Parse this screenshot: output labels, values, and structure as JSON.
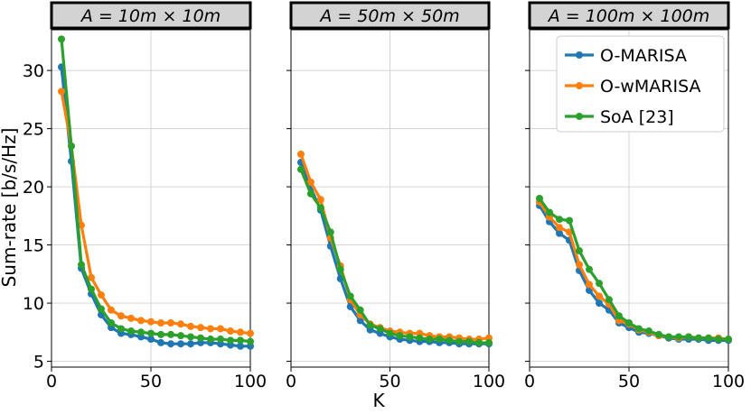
{
  "chart_data": {
    "type": "line",
    "ylabel": "Sum-rate [b/s/Hz]",
    "xlabel": "K",
    "xlim": [
      0,
      100
    ],
    "ylim": [
      4.5,
      33.5
    ],
    "xticks": [
      "0",
      "50",
      "100"
    ],
    "yticks": [
      "5",
      "10",
      "15",
      "20",
      "25",
      "30"
    ],
    "grid": true,
    "legend": {
      "placement": "top-right of third panel",
      "entries": [
        "O-MARISA",
        "O-wMARISA",
        "SoA [23]"
      ]
    },
    "colors": {
      "O-MARISA": "#1f77b4",
      "O-wMARISA": "#ff7f0e",
      "SoA [23]": "#2ca02c"
    },
    "x": [
      5,
      10,
      15,
      20,
      25,
      30,
      35,
      40,
      45,
      50,
      55,
      60,
      65,
      70,
      75,
      80,
      85,
      90,
      95,
      100
    ],
    "panels": [
      {
        "title": "A = 10m × 10m",
        "series": [
          {
            "name": "O-MARISA",
            "values": [
              30.3,
              22.2,
              13.0,
              10.8,
              9.0,
              7.9,
              7.4,
              7.3,
              7.1,
              6.9,
              6.6,
              6.5,
              6.5,
              6.5,
              6.6,
              6.6,
              6.5,
              6.4,
              6.3,
              6.3
            ]
          },
          {
            "name": "O-wMARISA",
            "values": [
              28.2,
              23.5,
              16.7,
              12.2,
              10.7,
              9.4,
              8.9,
              8.7,
              8.5,
              8.4,
              8.3,
              8.3,
              8.2,
              8.0,
              7.9,
              7.8,
              7.8,
              7.6,
              7.5,
              7.4
            ]
          },
          {
            "name": "SoA [23]",
            "values": [
              32.7,
              23.5,
              13.3,
              11.2,
              9.5,
              8.3,
              7.8,
              7.6,
              7.5,
              7.4,
              7.3,
              7.3,
              7.2,
              7.1,
              7.0,
              6.9,
              6.9,
              6.8,
              6.8,
              6.7
            ]
          }
        ]
      },
      {
        "title": "A = 50m × 50m",
        "series": [
          {
            "name": "O-MARISA",
            "values": [
              22.1,
              19.9,
              18.0,
              14.9,
              12.1,
              9.7,
              8.5,
              7.7,
              7.4,
              7.1,
              6.9,
              6.8,
              6.7,
              6.7,
              6.6,
              6.6,
              6.5,
              6.5,
              6.5,
              6.5
            ]
          },
          {
            "name": "O-wMARISA",
            "values": [
              22.8,
              20.4,
              18.9,
              15.6,
              13.2,
              10.3,
              9.0,
              8.2,
              7.9,
              7.6,
              7.5,
              7.4,
              7.4,
              7.2,
              7.1,
              7.1,
              7.0,
              6.9,
              6.9,
              7.0
            ]
          },
          {
            "name": "SoA [23]",
            "values": [
              21.5,
              19.4,
              18.2,
              16.1,
              12.9,
              10.6,
              9.4,
              8.1,
              7.8,
              7.4,
              7.2,
              7.1,
              7.0,
              6.9,
              6.9,
              6.8,
              6.7,
              6.7,
              6.6,
              6.6
            ]
          }
        ]
      },
      {
        "title": "A = 100m × 100m",
        "series": [
          {
            "name": "O-MARISA",
            "values": [
              18.4,
              17.0,
              16.0,
              15.4,
              12.8,
              11.1,
              10.0,
              9.4,
              8.3,
              7.9,
              7.5,
              7.4,
              7.2,
              7.0,
              6.9,
              6.9,
              6.9,
              6.8,
              6.8,
              6.8
            ]
          },
          {
            "name": "O-wMARISA",
            "values": [
              18.7,
              17.4,
              16.5,
              16.1,
              13.3,
              11.6,
              10.6,
              9.9,
              8.5,
              8.2,
              7.7,
              7.5,
              7.2,
              7.1,
              7.0,
              7.1,
              7.0,
              7.0,
              7.0,
              6.9
            ]
          },
          {
            "name": "SoA [23]",
            "values": [
              19.0,
              17.8,
              17.2,
              17.1,
              14.5,
              12.9,
              11.7,
              10.3,
              8.9,
              8.3,
              7.8,
              7.6,
              7.3,
              7.1,
              7.1,
              7.1,
              7.0,
              7.0,
              6.9,
              6.9
            ]
          }
        ]
      }
    ]
  }
}
